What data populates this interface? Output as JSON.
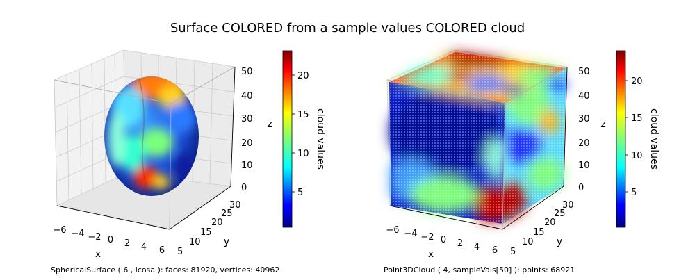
{
  "figure": {
    "title": "Surface COLORED from a sample values COLORED cloud"
  },
  "chart_data": [
    {
      "type": "surface3d",
      "description": "SphericalSurface ( 6 , icosa ):  faces: 81920,  vertices: 40962",
      "x_axis": {
        "label": "x",
        "ticks": [
          "−6",
          "−4",
          "−2",
          "0",
          "2",
          "4",
          "6"
        ],
        "range": [
          -6,
          6
        ]
      },
      "y_axis": {
        "label": "y",
        "ticks": [
          "5",
          "10",
          "15",
          "20",
          "25",
          "30"
        ],
        "range": [
          5,
          30
        ]
      },
      "z_axis": {
        "label": "z",
        "ticks": [
          "0",
          "10",
          "20",
          "30",
          "40",
          "50"
        ],
        "range": [
          0,
          50
        ]
      },
      "colorbar": {
        "label": "cloud values",
        "ticks": [
          "5",
          "10",
          "15",
          "20"
        ],
        "range": [
          0.5,
          22.8
        ],
        "colormap": "jet"
      }
    },
    {
      "type": "scatter3d",
      "description": "Point3DCloud ( 4, sampleVals[50] ):  points: 68921",
      "x_axis": {
        "label": "x",
        "ticks": [
          "−6",
          "−4",
          "−2",
          "0",
          "2",
          "4",
          "6"
        ],
        "range": [
          -6,
          6
        ]
      },
      "y_axis": {
        "label": "y",
        "ticks": [
          "5",
          "10",
          "15",
          "20",
          "25",
          "30"
        ],
        "range": [
          5,
          30
        ]
      },
      "z_axis": {
        "label": "z",
        "ticks": [
          "0",
          "10",
          "20",
          "30",
          "40",
          "50"
        ],
        "range": [
          0,
          50
        ]
      },
      "colorbar": {
        "label": "cloud values",
        "ticks": [
          "5",
          "10",
          "15",
          "20"
        ],
        "range": [
          0.3,
          24.0
        ],
        "colormap": "jet"
      }
    }
  ]
}
